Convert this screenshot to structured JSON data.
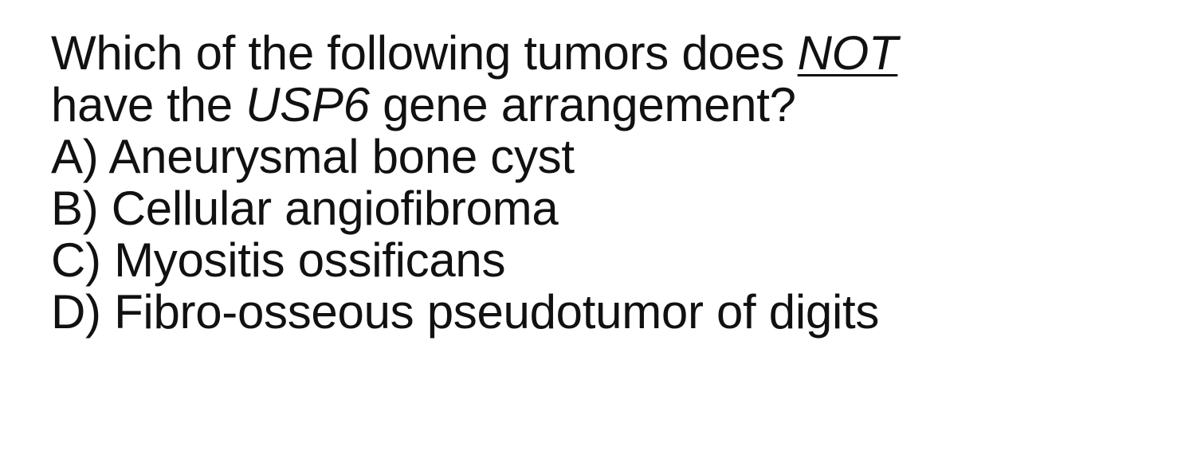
{
  "question": {
    "line1_prefix": "Which of the following tumors does ",
    "line1_emphasis": "NOT",
    "line2_prefix": "have the ",
    "line2_gene": "USP6",
    "line2_suffix": " gene arrangement?"
  },
  "options": [
    {
      "label": "A) Aneurysmal bone cyst"
    },
    {
      "label": "B) Cellular angiofibroma"
    },
    {
      "label": "C) Myositis ossificans"
    },
    {
      "label": "D) Fibro-osseous pseudotumor of digits"
    }
  ]
}
